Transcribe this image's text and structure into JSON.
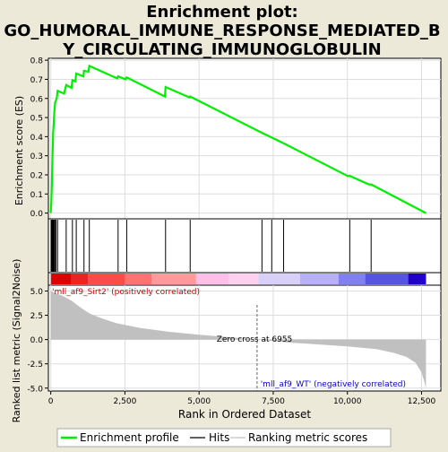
{
  "chart_data": {
    "type": "line",
    "title_lines": [
      "Enrichment plot:",
      "GO_HUMORAL_IMMUNE_RESPONSE_MEDIATED_B",
      "Y_CIRCULATING_IMMUNOGLOBULIN"
    ],
    "es_panel": {
      "ylabel": "Enrichment score (ES)",
      "ylim": [
        -0.03,
        0.81
      ],
      "yticks": [
        0.0,
        0.1,
        0.2,
        0.3,
        0.4,
        0.5,
        0.6,
        0.7,
        0.8
      ],
      "ytick_labels": [
        "0.0",
        "0.1",
        "0.2",
        "0.3",
        "0.4",
        "0.5",
        "0.6",
        "0.7",
        "0.8"
      ],
      "color": "#00ee00",
      "profile": [
        [
          0,
          0.0
        ],
        [
          20,
          0.06
        ],
        [
          40,
          0.17
        ],
        [
          60,
          0.3
        ],
        [
          80,
          0.42
        ],
        [
          100,
          0.47
        ],
        [
          120,
          0.53
        ],
        [
          150,
          0.58
        ],
        [
          200,
          0.6
        ],
        [
          230,
          0.64
        ],
        [
          450,
          0.625
        ],
        [
          520,
          0.67
        ],
        [
          700,
          0.655
        ],
        [
          730,
          0.695
        ],
        [
          830,
          0.69
        ],
        [
          860,
          0.73
        ],
        [
          1100,
          0.715
        ],
        [
          1120,
          0.745
        ],
        [
          1270,
          0.74
        ],
        [
          1300,
          0.77
        ],
        [
          2240,
          0.705
        ],
        [
          2270,
          0.715
        ],
        [
          2520,
          0.7
        ],
        [
          2560,
          0.71
        ],
        [
          3850,
          0.61
        ],
        [
          3870,
          0.66
        ],
        [
          4680,
          0.605
        ],
        [
          4700,
          0.61
        ],
        [
          7120,
          0.42
        ],
        [
          7450,
          0.395
        ],
        [
          7850,
          0.365
        ],
        [
          10000,
          0.195
        ],
        [
          10080,
          0.195
        ],
        [
          10720,
          0.15
        ],
        [
          10800,
          0.15
        ],
        [
          12650,
          0.0
        ]
      ]
    },
    "hits": [
      10,
      25,
      40,
      55,
      70,
      85,
      100,
      115,
      140,
      175,
      230,
      520,
      730,
      860,
      1120,
      1300,
      2270,
      2560,
      3870,
      4700,
      7120,
      7450,
      7850,
      10080,
      10800
    ],
    "rank_bar": {
      "segments": [
        {
          "end": 30,
          "color": "#bb0000"
        },
        {
          "end": 700,
          "color": "#dd0000"
        },
        {
          "end": 1250,
          "color": "#ee2222"
        },
        {
          "end": 2500,
          "color": "#ff4a4a"
        },
        {
          "end": 3400,
          "color": "#ff7272"
        },
        {
          "end": 4900,
          "color": "#ff9a9a"
        },
        {
          "end": 6000,
          "color": "#ffbfe8"
        },
        {
          "end": 7000,
          "color": "#ffd0f0"
        },
        {
          "end": 8400,
          "color": "#d8d0f8"
        },
        {
          "end": 9700,
          "color": "#b8b0f4"
        },
        {
          "end": 10600,
          "color": "#8080ee"
        },
        {
          "end": 12050,
          "color": "#5555dd"
        },
        {
          "end": 12650,
          "color": "#2200cc"
        }
      ]
    },
    "metric_panel": {
      "ylabel": "Ranked list metric (Signal2Noise)",
      "ylim": [
        -5.3,
        5.6
      ],
      "yticks": [
        -5.0,
        -2.5,
        0.0,
        2.5,
        5.0
      ],
      "ytick_labels": [
        "-5.0",
        "-2.5",
        "0.0",
        "2.5",
        "5.0"
      ],
      "fill_color": "#c0c0c0",
      "curve": [
        [
          0,
          5.0
        ],
        [
          150,
          4.8
        ],
        [
          400,
          4.5
        ],
        [
          700,
          4.0
        ],
        [
          1000,
          3.3
        ],
        [
          1300,
          2.7
        ],
        [
          1700,
          2.2
        ],
        [
          2200,
          1.7
        ],
        [
          3000,
          1.2
        ],
        [
          4000,
          0.8
        ],
        [
          5000,
          0.5
        ],
        [
          6000,
          0.25
        ],
        [
          6955,
          0.0
        ],
        [
          8000,
          -0.3
        ],
        [
          9000,
          -0.5
        ],
        [
          10000,
          -0.7
        ],
        [
          11000,
          -1.0
        ],
        [
          11600,
          -1.4
        ],
        [
          12000,
          -1.8
        ],
        [
          12300,
          -2.4
        ],
        [
          12500,
          -3.4
        ],
        [
          12600,
          -4.4
        ],
        [
          12650,
          -5.0
        ]
      ],
      "pos_label": "'mll_af9_Sirt2' (positively correlated)",
      "neg_label": "'mll_af9_WT' (negatively correlated)",
      "zero_cross_label": "Zero cross at 6955",
      "zero_cross": 6955
    },
    "xaxis": {
      "xlabel": "Rank in Ordered Dataset",
      "xlim": [
        -80,
        13150
      ],
      "xticks": [
        0,
        2500,
        5000,
        7500,
        10000,
        12500
      ],
      "xtick_labels": [
        "0",
        "2,500",
        "5,000",
        "7,500",
        "10,000",
        "12,500"
      ]
    },
    "legend": {
      "placement": "bottom",
      "items": [
        {
          "label": "Enrichment profile",
          "color": "#00ee00"
        },
        {
          "label": "Hits",
          "color": "#000000"
        },
        {
          "label": "Ranking metric scores",
          "color": "#c0c0c0"
        }
      ]
    }
  }
}
